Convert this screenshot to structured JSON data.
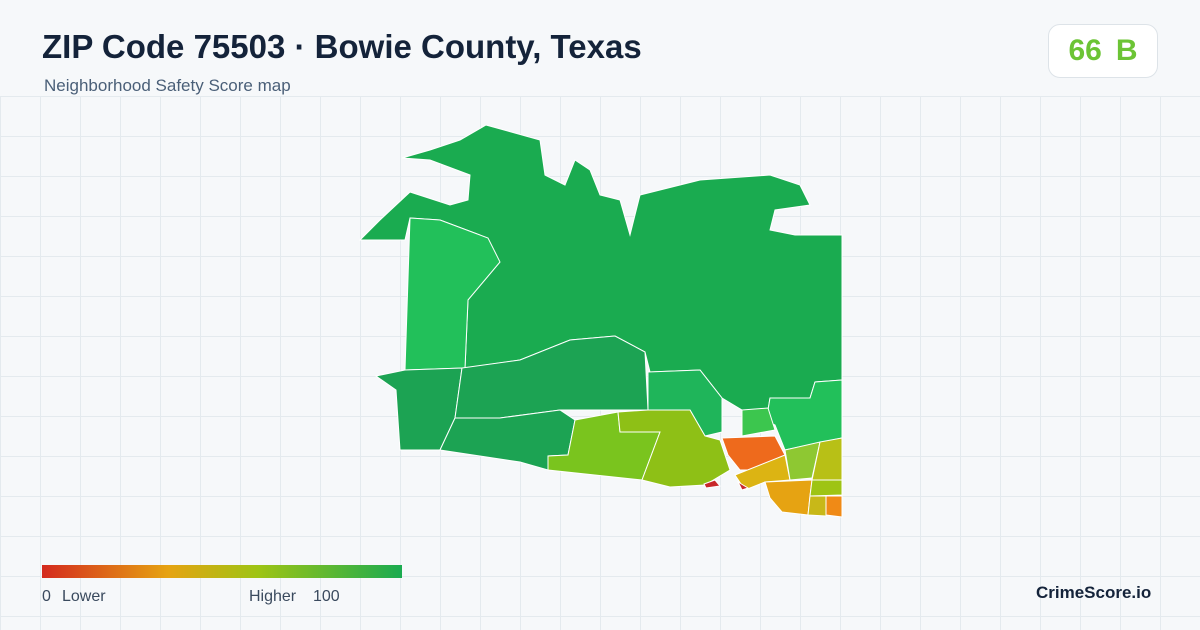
{
  "header": {
    "title": "ZIP Code 75503 · Bowie County, Texas",
    "subtitle": "Neighborhood Safety Score map"
  },
  "score": {
    "value": "66",
    "grade": "B"
  },
  "legend": {
    "min": "0",
    "min_label": "Lower",
    "max_label": "Higher",
    "max": "100"
  },
  "brand": "CrimeScore.io"
}
